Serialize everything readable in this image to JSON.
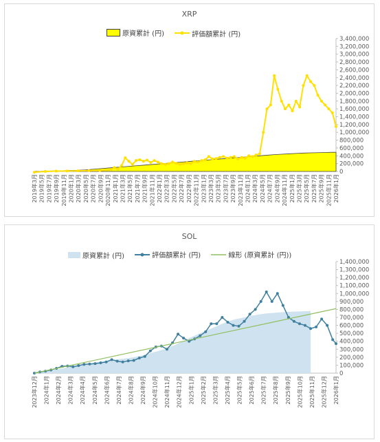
{
  "chart_data": [
    {
      "type": "area",
      "title": "XRP",
      "legend": [
        {
          "label": "原資累計 (円)",
          "color": "#ffff00",
          "kind": "area"
        },
        {
          "label": "評価額累計 (円)",
          "color": "#ffe000",
          "kind": "line-marker"
        }
      ],
      "legend_position": "top",
      "y_axis_side": "right",
      "ylim": [
        0,
        3400000
      ],
      "y_ticks": [
        "0",
        "200,000",
        "400,000",
        "600,000",
        "800,000",
        "1,000,000",
        "1,200,000",
        "1,400,000",
        "1,600,000",
        "1,800,000",
        "2,000,000",
        "2,200,000",
        "2,400,000",
        "2,600,000",
        "2,800,000",
        "3,000,000",
        "3,200,000",
        "3,400,000"
      ],
      "x_ticks": [
        "2019年3月",
        "2019年5月",
        "2019年7月",
        "2019年9月",
        "2019年11月",
        "2020年1月",
        "2020年3月",
        "2020年5月",
        "2020年7月",
        "2020年9月",
        "2020年11月",
        "2021年1月",
        "2021年3月",
        "2021年5月",
        "2021年7月",
        "2021年9月",
        "2021年11月",
        "2022年1月",
        "2022年3月",
        "2022年5月",
        "2022年7月",
        "2022年9月",
        "2022年11月",
        "2023年1月",
        "2023年3月",
        "2023年5月",
        "2023年7月",
        "2023年9月",
        "2023年11月",
        "2024年1月",
        "2024年3月",
        "2024年5月",
        "2024年7月",
        "2024年9月",
        "2024年11月",
        "2025年1月",
        "2025年3月",
        "2025年5月",
        "2025年7月",
        "2025年9月",
        "2025年11月",
        "2026年1月"
      ],
      "gridlines": false,
      "series": [
        {
          "name": "原資累計 (円)",
          "points": [
            [
              0,
              0
            ],
            [
              2,
              5000
            ],
            [
              4,
              10000
            ],
            [
              6,
              15000
            ],
            [
              8,
              20000
            ],
            [
              10,
              25000
            ],
            [
              12,
              30000
            ],
            [
              14,
              40000
            ],
            [
              16,
              55000
            ],
            [
              18,
              70000
            ],
            [
              20,
              85000
            ],
            [
              22,
              100000
            ],
            [
              24,
              115000
            ],
            [
              26,
              130000
            ],
            [
              28,
              145000
            ],
            [
              30,
              160000
            ],
            [
              32,
              175000
            ],
            [
              34,
              190000
            ],
            [
              36,
              205000
            ],
            [
              38,
              220000
            ],
            [
              40,
              235000
            ],
            [
              42,
              250000
            ],
            [
              44,
              265000
            ],
            [
              46,
              280000
            ],
            [
              48,
              295000
            ],
            [
              50,
              310000
            ],
            [
              52,
              325000
            ],
            [
              54,
              340000
            ],
            [
              56,
              355000
            ],
            [
              58,
              370000
            ],
            [
              60,
              385000
            ],
            [
              62,
              400000
            ],
            [
              64,
              415000
            ],
            [
              66,
              430000
            ],
            [
              68,
              440000
            ],
            [
              70,
              450000
            ],
            [
              72,
              460000
            ],
            [
              74,
              470000
            ],
            [
              76,
              475000
            ],
            [
              78,
              480000
            ],
            [
              80,
              485000
            ],
            [
              82,
              490000
            ],
            [
              83,
              490000
            ]
          ]
        },
        {
          "name": "評価額累計 (円)",
          "points": [
            [
              0,
              -20000
            ],
            [
              3,
              0
            ],
            [
              6,
              8000
            ],
            [
              9,
              12000
            ],
            [
              12,
              15000
            ],
            [
              15,
              20000
            ],
            [
              18,
              25000
            ],
            [
              21,
              40000
            ],
            [
              22,
              100000
            ],
            [
              23,
              60000
            ],
            [
              24,
              150000
            ],
            [
              25,
              350000
            ],
            [
              26,
              260000
            ],
            [
              27,
              180000
            ],
            [
              28,
              280000
            ],
            [
              29,
              300000
            ],
            [
              30,
              260000
            ],
            [
              31,
              290000
            ],
            [
              32,
              230000
            ],
            [
              33,
              280000
            ],
            [
              34,
              240000
            ],
            [
              35,
              200000
            ],
            [
              36,
              180000
            ],
            [
              37,
              200000
            ],
            [
              38,
              240000
            ],
            [
              39,
              210000
            ],
            [
              40,
              180000
            ],
            [
              41,
              200000
            ],
            [
              42,
              220000
            ],
            [
              43,
              200000
            ],
            [
              44,
              260000
            ],
            [
              45,
              240000
            ],
            [
              46,
              280000
            ],
            [
              47,
              300000
            ],
            [
              48,
              380000
            ],
            [
              49,
              320000
            ],
            [
              50,
              330000
            ],
            [
              51,
              360000
            ],
            [
              52,
              380000
            ],
            [
              53,
              340000
            ],
            [
              54,
              360000
            ],
            [
              55,
              380000
            ],
            [
              56,
              320000
            ],
            [
              57,
              360000
            ],
            [
              58,
              340000
            ],
            [
              59,
              400000
            ],
            [
              60,
              380000
            ],
            [
              61,
              420000
            ],
            [
              62,
              450000
            ],
            [
              63,
              1000000
            ],
            [
              64,
              1600000
            ],
            [
              65,
              1700000
            ],
            [
              66,
              2450000
            ],
            [
              67,
              2100000
            ],
            [
              68,
              1800000
            ],
            [
              69,
              1600000
            ],
            [
              70,
              1700000
            ],
            [
              71,
              1550000
            ],
            [
              72,
              1800000
            ],
            [
              73,
              1650000
            ],
            [
              74,
              2200000
            ],
            [
              75,
              2450000
            ],
            [
              76,
              2300000
            ],
            [
              77,
              2200000
            ],
            [
              78,
              1950000
            ],
            [
              79,
              1800000
            ],
            [
              80,
              1700000
            ],
            [
              81,
              1600000
            ],
            [
              82,
              1500000
            ],
            [
              83,
              1150000
            ]
          ]
        }
      ]
    },
    {
      "type": "area",
      "title": "SOL",
      "legend": [
        {
          "label": "原資累計 (円)",
          "color": "#cfe2ef",
          "kind": "area"
        },
        {
          "label": "評価額累計 (円)",
          "color": "#3f7f9f",
          "kind": "line-marker"
        },
        {
          "label": "線形 (原資累計 (円))",
          "color": "#8fbf5f",
          "kind": "trendline"
        }
      ],
      "legend_position": "top",
      "y_axis_side": "right",
      "ylim": [
        0,
        1400000
      ],
      "y_ticks": [
        "0",
        "100,000",
        "200,000",
        "300,000",
        "400,000",
        "500,000",
        "600,000",
        "700,000",
        "800,000",
        "900,000",
        "1,000,000",
        "1,100,000",
        "1,200,000",
        "1,300,000",
        "1,400,000"
      ],
      "x_ticks": [
        "2023年12月",
        "2024年1月",
        "2024年2月",
        "2024年3月",
        "2024年4月",
        "2024年5月",
        "2024年6月",
        "2024年7月",
        "2024年8月",
        "2024年9月",
        "2024年10月",
        "2024年11月",
        "2024年12月",
        "2025年1月",
        "2025年2月",
        "2025年3月",
        "2025年4月",
        "2025年5月",
        "2025年6月",
        "2025年7月",
        "2025年8月",
        "2025年9月",
        "2025年10月",
        "2025年11月",
        "2025年12月",
        "2026年1月"
      ],
      "gridlines": false,
      "series": [
        {
          "name": "原資累計 (円)",
          "points": [
            [
              0,
              0
            ],
            [
              1,
              20000
            ],
            [
              2,
              45000
            ],
            [
              3,
              70000
            ],
            [
              4,
              95000
            ],
            [
              5,
              120000
            ],
            [
              6,
              145000
            ],
            [
              7,
              165000
            ],
            [
              8,
              180000
            ],
            [
              9,
              200000
            ],
            [
              10,
              230000
            ],
            [
              11,
              270000
            ],
            [
              12,
              310000
            ],
            [
              13,
              370000
            ],
            [
              14,
              440000
            ],
            [
              15,
              500000
            ],
            [
              16,
              560000
            ],
            [
              17,
              620000
            ],
            [
              18,
              670000
            ],
            [
              19,
              700000
            ],
            [
              20,
              730000
            ],
            [
              21,
              750000
            ],
            [
              22,
              760000
            ],
            [
              23,
              770000
            ],
            [
              24,
              775000
            ],
            [
              25,
              780000
            ]
          ]
        },
        {
          "name": "評価額累計 (円)",
          "points": [
            [
              0,
              0
            ],
            [
              0.5,
              15000
            ],
            [
              1,
              25000
            ],
            [
              1.5,
              40000
            ],
            [
              2,
              60000
            ],
            [
              2.5,
              85000
            ],
            [
              3,
              90000
            ],
            [
              3.5,
              80000
            ],
            [
              4,
              95000
            ],
            [
              4.5,
              110000
            ],
            [
              5,
              115000
            ],
            [
              5.5,
              120000
            ],
            [
              6,
              130000
            ],
            [
              6.5,
              140000
            ],
            [
              7,
              170000
            ],
            [
              7.5,
              150000
            ],
            [
              8,
              140000
            ],
            [
              8.5,
              155000
            ],
            [
              9,
              160000
            ],
            [
              9.5,
              190000
            ],
            [
              10,
              210000
            ],
            [
              10.5,
              280000
            ],
            [
              11,
              330000
            ],
            [
              11.5,
              340000
            ],
            [
              12,
              300000
            ],
            [
              12.5,
              380000
            ],
            [
              13,
              490000
            ],
            [
              13.5,
              440000
            ],
            [
              14,
              400000
            ],
            [
              14.5,
              430000
            ],
            [
              15,
              470000
            ],
            [
              15.5,
              520000
            ],
            [
              16,
              620000
            ],
            [
              16.5,
              620000
            ],
            [
              17,
              700000
            ],
            [
              17.5,
              640000
            ],
            [
              18,
              600000
            ],
            [
              18.5,
              590000
            ],
            [
              19,
              650000
            ],
            [
              19.5,
              740000
            ],
            [
              20,
              800000
            ],
            [
              20.5,
              900000
            ],
            [
              21,
              1020000
            ],
            [
              21.5,
              900000
            ],
            [
              22,
              1000000
            ],
            [
              22.5,
              850000
            ],
            [
              23,
              700000
            ],
            [
              23.5,
              650000
            ],
            [
              24,
              620000
            ],
            [
              24.5,
              600000
            ],
            [
              25,
              560000
            ],
            [
              25.5,
              580000
            ],
            [
              26,
              680000
            ],
            [
              26.5,
              600000
            ],
            [
              27,
              420000
            ],
            [
              27.3,
              370000
            ]
          ]
        },
        {
          "name": "線形 (原資累計 (円))",
          "points": [
            [
              0,
              0
            ],
            [
              27.3,
              810000
            ]
          ]
        }
      ]
    }
  ]
}
